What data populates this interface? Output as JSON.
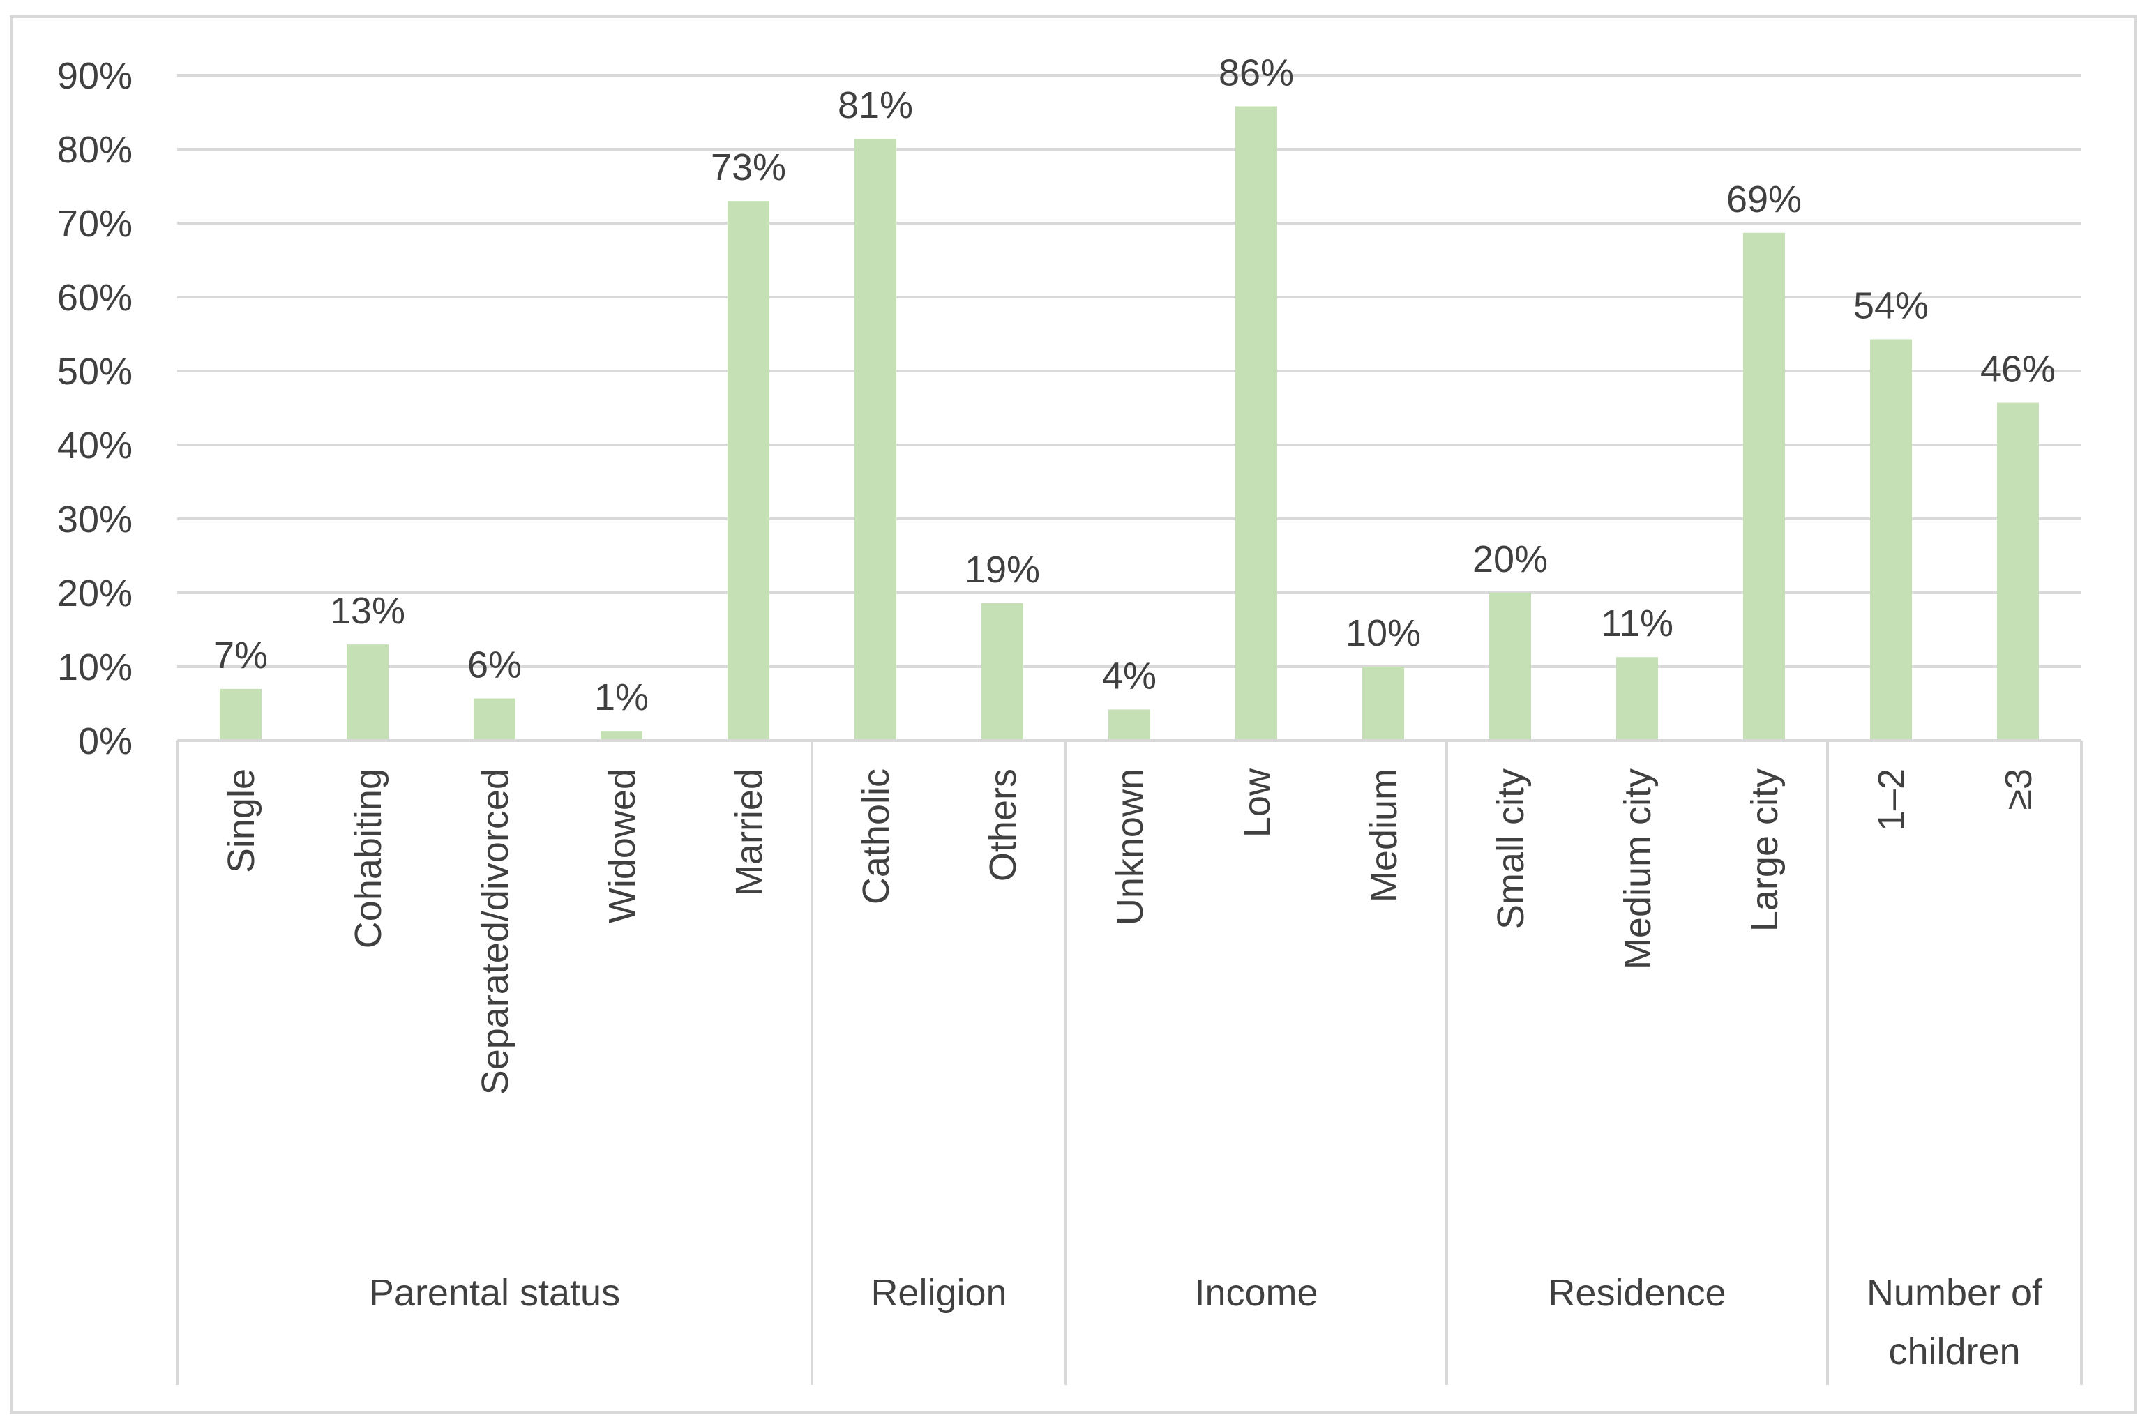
{
  "colors": {
    "bar": "#c5e0b4",
    "grid": "#d9d9d9",
    "text": "#404040",
    "frame": "#d9d9d9"
  },
  "chart_data": {
    "type": "bar",
    "title": "",
    "xlabel": "",
    "ylabel": "",
    "ylim": [
      0,
      90
    ],
    "y_ticks": [
      {
        "value": 0,
        "label": "0%"
      },
      {
        "value": 10,
        "label": "10%"
      },
      {
        "value": 20,
        "label": "20%"
      },
      {
        "value": 30,
        "label": "30%"
      },
      {
        "value": 40,
        "label": "40%"
      },
      {
        "value": 50,
        "label": "50%"
      },
      {
        "value": 60,
        "label": "60%"
      },
      {
        "value": 70,
        "label": "70%"
      },
      {
        "value": 80,
        "label": "80%"
      },
      {
        "value": 90,
        "label": "90%"
      }
    ],
    "grid": true,
    "legend": "none",
    "categories": [
      "Single",
      "Cohabiting",
      "Separated/divorced",
      "Widowed",
      "Married",
      "Catholic",
      "Others",
      "Unknown",
      "Low",
      "Medium",
      "Small city",
      "Medium city",
      "Large city",
      "1–2",
      "≥3"
    ],
    "values": [
      7,
      13,
      5.7,
      1.3,
      73,
      81.4,
      18.6,
      4.2,
      85.8,
      10,
      20,
      11.3,
      68.7,
      54.3,
      45.7
    ],
    "data_labels": [
      "7%",
      "13%",
      "6%",
      "1%",
      "73%",
      "81%",
      "19%",
      "4%",
      "86%",
      "10%",
      "20%",
      "11%",
      "69%",
      "54%",
      "46%"
    ],
    "groups": [
      {
        "label_lines": [
          "Parental status"
        ],
        "count": 5
      },
      {
        "label_lines": [
          "Religion"
        ],
        "count": 2
      },
      {
        "label_lines": [
          "Income"
        ],
        "count": 3
      },
      {
        "label_lines": [
          "Residence"
        ],
        "count": 3
      },
      {
        "label_lines": [
          "Number of",
          "children"
        ],
        "count": 2
      }
    ]
  }
}
